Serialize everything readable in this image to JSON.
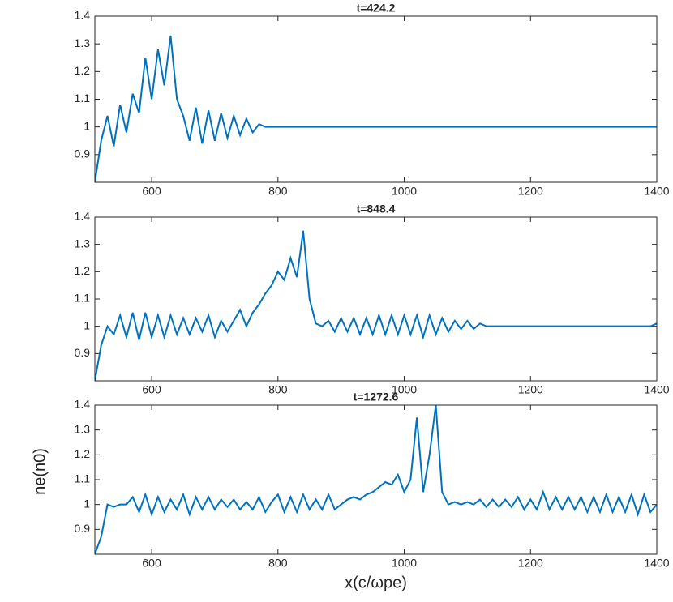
{
  "chart_data": [
    {
      "type": "line",
      "title": "t=424.2",
      "color": "#0072bd",
      "x": [
        510,
        520,
        530,
        540,
        550,
        560,
        570,
        580,
        590,
        600,
        610,
        620,
        630,
        640,
        650,
        660,
        670,
        680,
        690,
        700,
        710,
        720,
        730,
        740,
        750,
        760,
        770,
        780,
        790,
        800,
        810,
        820,
        830,
        840,
        850,
        860,
        870,
        880,
        890,
        900,
        910,
        920,
        930,
        940,
        950,
        960,
        970,
        980,
        990,
        1000,
        1010,
        1020,
        1030,
        1040,
        1050,
        1060,
        1070,
        1080,
        1090,
        1100,
        1110,
        1120,
        1130,
        1140,
        1150,
        1160,
        1170,
        1180,
        1190,
        1200,
        1210,
        1220,
        1230,
        1240,
        1250,
        1260,
        1270,
        1280,
        1290,
        1300,
        1310,
        1320,
        1330,
        1340,
        1350,
        1360,
        1370,
        1380,
        1390,
        1400
      ],
      "values": [
        0.8,
        0.95,
        1.04,
        0.93,
        1.08,
        0.98,
        1.12,
        1.05,
        1.25,
        1.1,
        1.28,
        1.15,
        1.33,
        1.1,
        1.04,
        0.95,
        1.07,
        0.94,
        1.06,
        0.95,
        1.05,
        0.96,
        1.04,
        0.97,
        1.03,
        0.98,
        1.01,
        1.0,
        1.0,
        1.0,
        1.0,
        1.0,
        1.0,
        1.0,
        1.0,
        1.0,
        1.0,
        1.0,
        1.0,
        1.0,
        1.0,
        1.0,
        1.0,
        1.0,
        1.0,
        1.0,
        1.0,
        1.0,
        1.0,
        1.0,
        1.0,
        1.0,
        1.0,
        1.0,
        1.0,
        1.0,
        1.0,
        1.0,
        1.0,
        1.0,
        1.0,
        1.0,
        1.0,
        1.0,
        1.0,
        1.0,
        1.0,
        1.0,
        1.0,
        1.0,
        1.0,
        1.0,
        1.0,
        1.0,
        1.0,
        1.0,
        1.0,
        1.0,
        1.0,
        1.0,
        1.0,
        1.0,
        1.0,
        1.0,
        1.0,
        1.0,
        1.0,
        1.0,
        1.0,
        1.0
      ],
      "xlim": [
        510,
        1400
      ],
      "xticks": [
        600,
        800,
        1000,
        1200,
        1400
      ],
      "ylim": [
        0.8,
        1.4
      ],
      "yticks": [
        0.9,
        1,
        1.1,
        1.2,
        1.3,
        1.4
      ]
    },
    {
      "type": "line",
      "title": "t=848.4",
      "color": "#0072bd",
      "x": [
        510,
        520,
        530,
        540,
        550,
        560,
        570,
        580,
        590,
        600,
        610,
        620,
        630,
        640,
        650,
        660,
        670,
        680,
        690,
        700,
        710,
        720,
        730,
        740,
        750,
        760,
        770,
        780,
        790,
        800,
        810,
        820,
        830,
        840,
        850,
        860,
        870,
        880,
        890,
        900,
        910,
        920,
        930,
        940,
        950,
        960,
        970,
        980,
        990,
        1000,
        1010,
        1020,
        1030,
        1040,
        1050,
        1060,
        1070,
        1080,
        1090,
        1100,
        1110,
        1120,
        1130,
        1140,
        1150,
        1160,
        1170,
        1180,
        1190,
        1200,
        1210,
        1220,
        1230,
        1240,
        1250,
        1260,
        1270,
        1280,
        1290,
        1300,
        1310,
        1320,
        1330,
        1340,
        1350,
        1360,
        1370,
        1380,
        1390,
        1400
      ],
      "values": [
        0.8,
        0.93,
        1.0,
        0.97,
        1.04,
        0.96,
        1.05,
        0.95,
        1.05,
        0.96,
        1.04,
        0.96,
        1.04,
        0.97,
        1.03,
        0.97,
        1.03,
        0.98,
        1.04,
        0.96,
        1.02,
        0.98,
        1.02,
        1.06,
        1.0,
        1.05,
        1.08,
        1.12,
        1.15,
        1.2,
        1.17,
        1.25,
        1.18,
        1.35,
        1.1,
        1.01,
        1.0,
        1.02,
        0.98,
        1.03,
        0.98,
        1.03,
        0.97,
        1.03,
        0.97,
        1.04,
        0.97,
        1.04,
        0.97,
        1.04,
        0.97,
        1.04,
        0.96,
        1.04,
        0.97,
        1.03,
        0.98,
        1.02,
        0.99,
        1.02,
        0.99,
        1.01,
        1.0,
        1.0,
        1.0,
        1.0,
        1.0,
        1.0,
        1.0,
        1.0,
        1.0,
        1.0,
        1.0,
        1.0,
        1.0,
        1.0,
        1.0,
        1.0,
        1.0,
        1.0,
        1.0,
        1.0,
        1.0,
        1.0,
        1.0,
        1.0,
        1.0,
        1.0,
        1.0,
        1.01
      ],
      "xlim": [
        510,
        1400
      ],
      "xticks": [
        600,
        800,
        1000,
        1200,
        1400
      ],
      "ylim": [
        0.8,
        1.4
      ],
      "yticks": [
        0.9,
        1,
        1.1,
        1.2,
        1.3,
        1.4
      ]
    },
    {
      "type": "line",
      "title": "t=1272.6",
      "color": "#0072bd",
      "xlabel": "x(c/ωpe)",
      "ylabel": "ne(n0)",
      "x": [
        510,
        520,
        530,
        540,
        550,
        560,
        570,
        580,
        590,
        600,
        610,
        620,
        630,
        640,
        650,
        660,
        670,
        680,
        690,
        700,
        710,
        720,
        730,
        740,
        750,
        760,
        770,
        780,
        790,
        800,
        810,
        820,
        830,
        840,
        850,
        860,
        870,
        880,
        890,
        900,
        910,
        920,
        930,
        940,
        950,
        960,
        970,
        980,
        990,
        1000,
        1010,
        1020,
        1030,
        1040,
        1050,
        1060,
        1070,
        1080,
        1090,
        1100,
        1110,
        1120,
        1130,
        1140,
        1150,
        1160,
        1170,
        1180,
        1190,
        1200,
        1210,
        1220,
        1230,
        1240,
        1250,
        1260,
        1270,
        1280,
        1290,
        1300,
        1310,
        1320,
        1330,
        1340,
        1350,
        1360,
        1370,
        1380,
        1390,
        1400
      ],
      "values": [
        0.8,
        0.87,
        1.0,
        0.99,
        1.0,
        1.0,
        1.03,
        0.97,
        1.04,
        0.96,
        1.03,
        0.97,
        1.02,
        0.98,
        1.04,
        0.96,
        1.03,
        0.98,
        1.03,
        0.98,
        1.02,
        0.99,
        1.02,
        0.98,
        1.01,
        0.98,
        1.03,
        0.97,
        1.01,
        1.04,
        0.97,
        1.03,
        0.97,
        1.04,
        0.98,
        1.02,
        0.98,
        1.04,
        0.98,
        1.0,
        1.02,
        1.03,
        1.02,
        1.04,
        1.05,
        1.07,
        1.09,
        1.08,
        1.12,
        1.05,
        1.1,
        1.35,
        1.05,
        1.2,
        1.4,
        1.05,
        1.0,
        1.01,
        1.0,
        1.01,
        1.0,
        1.02,
        0.99,
        1.02,
        0.99,
        1.02,
        0.99,
        1.03,
        0.98,
        1.02,
        0.98,
        1.05,
        0.98,
        1.03,
        0.98,
        1.03,
        0.98,
        1.03,
        0.97,
        1.03,
        0.97,
        1.04,
        0.97,
        1.03,
        0.97,
        1.04,
        0.96,
        1.04,
        0.97,
        1.0
      ],
      "xlim": [
        510,
        1400
      ],
      "xticks": [
        600,
        800,
        1000,
        1200,
        1400
      ],
      "ylim": [
        0.8,
        1.4
      ],
      "yticks": [
        0.9,
        1,
        1.1,
        1.2,
        1.3,
        1.4
      ]
    }
  ]
}
